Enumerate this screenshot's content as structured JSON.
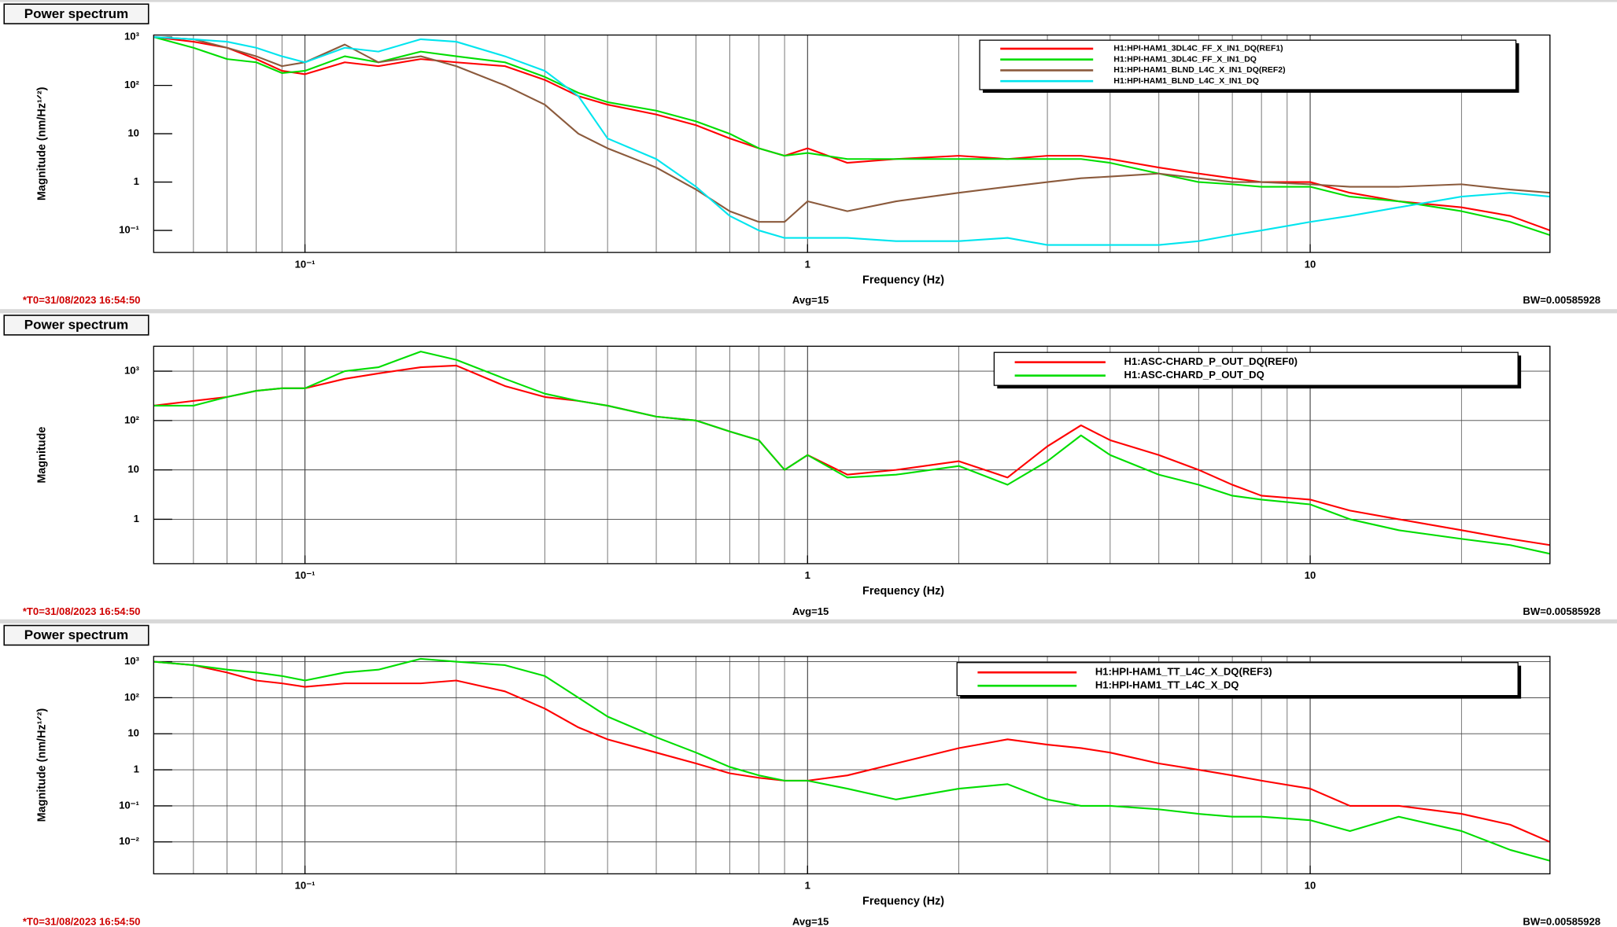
{
  "chart_data": [
    {
      "type": "line",
      "title": "Power spectrum",
      "ylabel": "Magnitude (nm/Hz¹ᐟ²)",
      "xlabel": "Frequency (Hz)",
      "t0": "*T0=31/08/2023 16:54:50",
      "avg": "Avg=15",
      "bw": "BW=0.00585928",
      "xscale": "log",
      "yscale": "log",
      "xgrid": true,
      "ygrid": false,
      "legend": "top-right",
      "xlim": [
        0.05,
        30
      ],
      "ylim": [
        0.035,
        1100
      ],
      "xticks": [
        {
          "value": 0.1,
          "label": "10⁻¹"
        },
        1,
        10
      ],
      "xminorticks": [
        0.06,
        0.07,
        0.08,
        0.09,
        0.2,
        0.3,
        0.4,
        0.5,
        0.6,
        0.7,
        0.8,
        0.9,
        2,
        3,
        4,
        5,
        6,
        7,
        8,
        9,
        20,
        30
      ],
      "yticks": [
        {
          "value": 0.1,
          "label": "10⁻¹"
        },
        1,
        10,
        {
          "value": 100,
          "label": "10²"
        },
        {
          "value": 1000,
          "label": "10³"
        }
      ],
      "x": [
        0.05,
        0.06,
        0.07,
        0.08,
        0.09,
        0.1,
        0.12,
        0.14,
        0.17,
        0.2,
        0.25,
        0.3,
        0.35,
        0.4,
        0.5,
        0.6,
        0.7,
        0.8,
        0.9,
        1,
        1.2,
        1.5,
        2,
        2.5,
        3,
        3.5,
        4,
        5,
        6,
        7,
        8,
        10,
        12,
        15,
        20,
        25,
        30
      ],
      "series": [
        {
          "name": "H1:HPI-HAM1_3DL4C_FF_X_IN1_DQ(REF1)",
          "color": "#ff0000",
          "values": [
            1000,
            800,
            600,
            350,
            200,
            170,
            300,
            250,
            350,
            300,
            250,
            130,
            60,
            40,
            25,
            15,
            8,
            5,
            3.5,
            5,
            2.5,
            3,
            3.5,
            3,
            3.5,
            3.5,
            3,
            2,
            1.5,
            1.2,
            1,
            1,
            0.6,
            0.4,
            0.3,
            0.2,
            0.1
          ]
        },
        {
          "name": "H1:HPI-HAM1_3DL4C_FF_X_IN1_DQ",
          "color": "#00dd00",
          "values": [
            1000,
            600,
            350,
            300,
            180,
            200,
            400,
            300,
            500,
            400,
            300,
            150,
            70,
            45,
            30,
            18,
            10,
            5,
            3.5,
            4,
            3,
            3,
            3,
            3,
            3,
            3,
            2.5,
            1.5,
            1,
            0.9,
            0.8,
            0.8,
            0.5,
            0.4,
            0.25,
            0.15,
            0.08
          ]
        },
        {
          "name": "H1:HPI-HAM1_BLND_L4C_X_IN1_DQ(REF2)",
          "color": "#8b5a3c",
          "values": [
            1000,
            900,
            600,
            400,
            250,
            300,
            700,
            300,
            400,
            250,
            100,
            40,
            10,
            5,
            2,
            0.7,
            0.25,
            0.15,
            0.15,
            0.4,
            0.25,
            0.4,
            0.6,
            0.8,
            1,
            1.2,
            1.3,
            1.5,
            1.2,
            1,
            1,
            0.9,
            0.8,
            0.8,
            0.9,
            0.7,
            0.6
          ]
        },
        {
          "name": "H1:HPI-HAM1_BLND_L4C_X_IN1_DQ",
          "color": "#00e5ee",
          "values": [
            1000,
            900,
            800,
            600,
            400,
            300,
            600,
            500,
            900,
            800,
            400,
            200,
            60,
            8,
            3,
            0.8,
            0.2,
            0.1,
            0.07,
            0.07,
            0.07,
            0.06,
            0.06,
            0.07,
            0.05,
            0.05,
            0.05,
            0.05,
            0.06,
            0.08,
            0.1,
            0.15,
            0.2,
            0.3,
            0.5,
            0.6,
            0.5
          ]
        }
      ]
    },
    {
      "type": "line",
      "title": "Power spectrum",
      "ylabel": "Magnitude",
      "xlabel": "Frequency (Hz)",
      "t0": "*T0=31/08/2023 16:54:50",
      "avg": "Avg=15",
      "bw": "BW=0.00585928",
      "xscale": "log",
      "yscale": "log",
      "xgrid": true,
      "ygrid": true,
      "legend": "top-right",
      "xlim": [
        0.05,
        30
      ],
      "ylim": [
        0.126,
        3200
      ],
      "xticks": [
        {
          "value": 0.1,
          "label": "10⁻¹"
        },
        1,
        10
      ],
      "xminorticks": [
        0.06,
        0.07,
        0.08,
        0.09,
        0.2,
        0.3,
        0.4,
        0.5,
        0.6,
        0.7,
        0.8,
        0.9,
        2,
        3,
        4,
        5,
        6,
        7,
        8,
        9,
        20,
        30
      ],
      "yticks": [
        1,
        10,
        {
          "value": 100,
          "label": "10²"
        },
        {
          "value": 1000,
          "label": "10³"
        }
      ],
      "x": [
        0.05,
        0.06,
        0.07,
        0.08,
        0.09,
        0.1,
        0.12,
        0.14,
        0.17,
        0.2,
        0.25,
        0.3,
        0.35,
        0.4,
        0.5,
        0.6,
        0.7,
        0.8,
        0.9,
        1,
        1.2,
        1.5,
        2,
        2.5,
        3,
        3.5,
        4,
        5,
        6,
        7,
        8,
        10,
        12,
        15,
        20,
        25,
        30
      ],
      "series": [
        {
          "name": "H1:ASC-CHARD_P_OUT_DQ(REF0)",
          "color": "#ff0000",
          "values": [
            200,
            250,
            300,
            400,
            450,
            450,
            700,
            900,
            1200,
            1300,
            500,
            300,
            250,
            200,
            120,
            100,
            60,
            40,
            10,
            20,
            8,
            10,
            15,
            7,
            30,
            80,
            40,
            20,
            10,
            5,
            3,
            2.5,
            1.5,
            1,
            0.6,
            0.4,
            0.3
          ]
        },
        {
          "name": "H1:ASC-CHARD_P_OUT_DQ",
          "color": "#00dd00",
          "values": [
            200,
            200,
            300,
            400,
            450,
            450,
            1000,
            1200,
            2500,
            1700,
            700,
            350,
            250,
            200,
            120,
            100,
            60,
            40,
            10,
            20,
            7,
            8,
            12,
            5,
            15,
            50,
            20,
            8,
            5,
            3,
            2.5,
            2,
            1,
            0.6,
            0.4,
            0.3,
            0.2
          ]
        }
      ]
    },
    {
      "type": "line",
      "title": "Power spectrum",
      "ylabel": "Magnitude (nm/Hz¹ᐟ²)",
      "xlabel": "Frequency (Hz)",
      "t0": "*T0=31/08/2023 16:54:50",
      "avg": "Avg=15",
      "bw": "BW=0.00585928",
      "xscale": "log",
      "yscale": "log",
      "xgrid": true,
      "ygrid": true,
      "legend": "top-right",
      "xlim": [
        0.05,
        30
      ],
      "ylim": [
        0.0013,
        1400
      ],
      "xticks": [
        {
          "value": 0.1,
          "label": "10⁻¹"
        },
        1,
        10
      ],
      "xminorticks": [
        0.06,
        0.07,
        0.08,
        0.09,
        0.2,
        0.3,
        0.4,
        0.5,
        0.6,
        0.7,
        0.8,
        0.9,
        2,
        3,
        4,
        5,
        6,
        7,
        8,
        9,
        20,
        30
      ],
      "yticks": [
        {
          "value": 0.01,
          "label": "10⁻²"
        },
        {
          "value": 0.1,
          "label": "10⁻¹"
        },
        1,
        10,
        {
          "value": 100,
          "label": "10²"
        },
        {
          "value": 1000,
          "label": "10³"
        }
      ],
      "x": [
        0.05,
        0.06,
        0.07,
        0.08,
        0.09,
        0.1,
        0.12,
        0.14,
        0.17,
        0.2,
        0.25,
        0.3,
        0.35,
        0.4,
        0.5,
        0.6,
        0.7,
        0.8,
        0.9,
        1,
        1.2,
        1.5,
        2,
        2.5,
        3,
        3.5,
        4,
        5,
        6,
        7,
        8,
        10,
        12,
        15,
        20,
        25,
        30
      ],
      "series": [
        {
          "name": "H1:HPI-HAM1_TT_L4C_X_DQ(REF3)",
          "color": "#ff0000",
          "values": [
            1000,
            800,
            500,
            300,
            250,
            200,
            250,
            250,
            250,
            300,
            150,
            50,
            15,
            7,
            3,
            1.5,
            0.8,
            0.6,
            0.5,
            0.5,
            0.7,
            1.5,
            4,
            7,
            5,
            4,
            3,
            1.5,
            1,
            0.7,
            0.5,
            0.3,
            0.1,
            0.1,
            0.06,
            0.03,
            0.01
          ]
        },
        {
          "name": "H1:HPI-HAM1_TT_L4C_X_DQ",
          "color": "#00dd00",
          "values": [
            1000,
            800,
            600,
            500,
            400,
            300,
            500,
            600,
            1200,
            1000,
            800,
            400,
            100,
            30,
            8,
            3,
            1.2,
            0.7,
            0.5,
            0.5,
            0.3,
            0.15,
            0.3,
            0.4,
            0.15,
            0.1,
            0.1,
            0.08,
            0.06,
            0.05,
            0.05,
            0.04,
            0.02,
            0.05,
            0.02,
            0.006,
            0.003
          ]
        }
      ]
    }
  ]
}
